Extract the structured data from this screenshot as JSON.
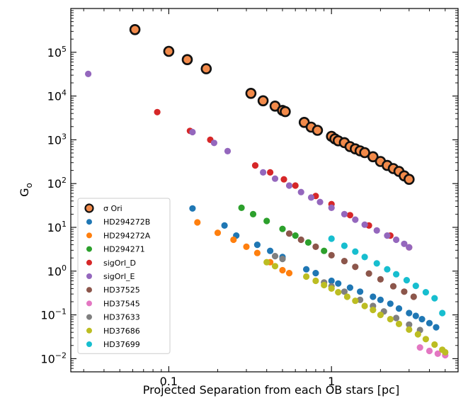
{
  "chart_data": {
    "type": "scatter",
    "title": "",
    "xlabel": "Projected Separation from each OB stars [pc]",
    "ylabel": "G",
    "ylabel_subscript": "o",
    "xscale": "log",
    "yscale": "log",
    "xlim": [
      0.025,
      6
    ],
    "ylim": [
      0.005,
      1000000
    ],
    "grid": false,
    "legend_position": "lower-left",
    "x_ticks": [
      {
        "value": 0.1,
        "label": "0.1"
      },
      {
        "value": 1,
        "label": "1"
      }
    ],
    "y_ticks": [
      {
        "value": 0.01,
        "base": "10",
        "exp": "−2"
      },
      {
        "value": 0.1,
        "base": "10",
        "exp": "−1"
      },
      {
        "value": 1,
        "base": "10",
        "exp": "0"
      },
      {
        "value": 10,
        "base": "10",
        "exp": "1"
      },
      {
        "value": 100,
        "base": "10",
        "exp": "2"
      },
      {
        "value": 1000,
        "base": "10",
        "exp": "3"
      },
      {
        "value": 10000,
        "base": "10",
        "exp": "4"
      },
      {
        "value": 100000,
        "base": "10",
        "exp": "5"
      }
    ],
    "series": [
      {
        "name": "σ Ori",
        "color": "#f28a4a",
        "edge": "#111111",
        "marker": "large-circle",
        "points": [
          [
            0.062,
            330000
          ],
          [
            0.1,
            105000
          ],
          [
            0.13,
            68000
          ],
          [
            0.17,
            42000
          ],
          [
            0.32,
            11500
          ],
          [
            0.38,
            7800
          ],
          [
            0.45,
            5900
          ],
          [
            0.5,
            4700
          ],
          [
            0.52,
            4400
          ],
          [
            0.68,
            2500
          ],
          [
            0.75,
            1950
          ],
          [
            0.82,
            1650
          ],
          [
            1.0,
            1200
          ],
          [
            1.05,
            1050
          ],
          [
            1.1,
            950
          ],
          [
            1.2,
            860
          ],
          [
            1.3,
            700
          ],
          [
            1.4,
            620
          ],
          [
            1.5,
            560
          ],
          [
            1.6,
            510
          ],
          [
            1.8,
            410
          ],
          [
            2.0,
            320
          ],
          [
            2.2,
            260
          ],
          [
            2.4,
            220
          ],
          [
            2.6,
            190
          ],
          [
            2.8,
            150
          ],
          [
            3.0,
            125
          ]
        ]
      },
      {
        "name": "HD294272B",
        "color": "#1f77b4",
        "points": [
          [
            0.14,
            27
          ],
          [
            0.22,
            11
          ],
          [
            0.26,
            6.5
          ],
          [
            0.35,
            4
          ],
          [
            0.42,
            2.9
          ],
          [
            0.5,
            2.1
          ],
          [
            0.7,
            1.1
          ],
          [
            0.8,
            0.9
          ],
          [
            1.0,
            0.6
          ],
          [
            1.1,
            0.52
          ],
          [
            1.3,
            0.42
          ],
          [
            1.5,
            0.34
          ],
          [
            1.8,
            0.26
          ],
          [
            2.0,
            0.22
          ],
          [
            2.3,
            0.18
          ],
          [
            2.6,
            0.14
          ],
          [
            3.0,
            0.11
          ],
          [
            3.3,
            0.095
          ],
          [
            3.6,
            0.08
          ],
          [
            4.0,
            0.065
          ],
          [
            4.4,
            0.052
          ]
        ]
      },
      {
        "name": "HD294272A",
        "color": "#ff7f0e",
        "points": [
          [
            0.15,
            13
          ],
          [
            0.2,
            7.5
          ],
          [
            0.25,
            5.2
          ],
          [
            0.3,
            3.6
          ],
          [
            0.35,
            2.6
          ],
          [
            0.42,
            1.6
          ],
          [
            0.5,
            1.05
          ],
          [
            0.55,
            0.9
          ]
        ]
      },
      {
        "name": "HD294271",
        "color": "#2ca02c",
        "points": [
          [
            0.28,
            28
          ],
          [
            0.33,
            20
          ],
          [
            0.4,
            14
          ],
          [
            0.5,
            9.2
          ],
          [
            0.6,
            6.5
          ],
          [
            0.72,
            4.5
          ],
          [
            0.9,
            2.9
          ]
        ]
      },
      {
        "name": "sigOrl_D",
        "color": "#d62728",
        "points": [
          [
            0.085,
            4300
          ],
          [
            0.135,
            1600
          ],
          [
            0.18,
            1000
          ],
          [
            0.34,
            260
          ],
          [
            0.42,
            180
          ],
          [
            0.51,
            125
          ],
          [
            0.6,
            90
          ],
          [
            0.8,
            52
          ],
          [
            1.0,
            34
          ],
          [
            1.3,
            19
          ],
          [
            1.7,
            11
          ],
          [
            2.3,
            6.5
          ],
          [
            3.0,
            3.5
          ]
        ]
      },
      {
        "name": "sigOrl_E",
        "color": "#9467bd",
        "points": [
          [
            0.032,
            32000
          ],
          [
            0.14,
            1500
          ],
          [
            0.19,
            850
          ],
          [
            0.23,
            550
          ],
          [
            0.38,
            180
          ],
          [
            0.45,
            130
          ],
          [
            0.55,
            90
          ],
          [
            0.65,
            64
          ],
          [
            0.75,
            48
          ],
          [
            0.85,
            38
          ],
          [
            1.0,
            28
          ],
          [
            1.2,
            20
          ],
          [
            1.4,
            15
          ],
          [
            1.6,
            11.5
          ],
          [
            1.9,
            8.5
          ],
          [
            2.2,
            6.5
          ],
          [
            2.5,
            5.2
          ],
          [
            2.8,
            4.2
          ],
          [
            3.0,
            3.5
          ]
        ]
      },
      {
        "name": "HD37525",
        "color": "#8c564b",
        "points": [
          [
            0.55,
            7.2
          ],
          [
            0.65,
            5.2
          ],
          [
            0.8,
            3.6
          ],
          [
            1.0,
            2.3
          ],
          [
            1.2,
            1.7
          ],
          [
            1.4,
            1.25
          ],
          [
            1.7,
            0.88
          ],
          [
            2.0,
            0.65
          ],
          [
            2.4,
            0.45
          ],
          [
            2.8,
            0.34
          ],
          [
            3.2,
            0.26
          ]
        ]
      },
      {
        "name": "HD37545",
        "color": "#e377c2",
        "points": [
          [
            3.5,
            0.018
          ],
          [
            4.0,
            0.015
          ],
          [
            4.5,
            0.013
          ],
          [
            5.0,
            0.012
          ]
        ]
      },
      {
        "name": "HD37633",
        "color": "#7f7f7f",
        "points": [
          [
            0.45,
            2.2
          ],
          [
            0.5,
            1.9
          ],
          [
            0.9,
            0.55
          ],
          [
            1.0,
            0.45
          ],
          [
            1.2,
            0.34
          ],
          [
            1.5,
            0.22
          ],
          [
            1.8,
            0.16
          ],
          [
            2.1,
            0.12
          ],
          [
            2.5,
            0.085
          ],
          [
            3.0,
            0.06
          ],
          [
            3.5,
            0.045
          ]
        ]
      },
      {
        "name": "HD37686",
        "color": "#bcbd22",
        "points": [
          [
            0.4,
            1.6
          ],
          [
            0.45,
            1.3
          ],
          [
            0.7,
            0.75
          ],
          [
            0.8,
            0.6
          ],
          [
            0.9,
            0.48
          ],
          [
            1.0,
            0.4
          ],
          [
            1.1,
            0.33
          ],
          [
            1.25,
            0.26
          ],
          [
            1.4,
            0.21
          ],
          [
            1.6,
            0.16
          ],
          [
            1.8,
            0.13
          ],
          [
            2.0,
            0.1
          ],
          [
            2.3,
            0.08
          ],
          [
            2.6,
            0.062
          ],
          [
            3.0,
            0.046
          ],
          [
            3.4,
            0.036
          ],
          [
            3.8,
            0.028
          ],
          [
            4.3,
            0.021
          ],
          [
            4.8,
            0.016
          ],
          [
            5.0,
            0.014
          ]
        ]
      },
      {
        "name": "HD37699",
        "color": "#17becf",
        "points": [
          [
            1.0,
            5.5
          ],
          [
            1.2,
            3.8
          ],
          [
            1.4,
            2.8
          ],
          [
            1.6,
            2.1
          ],
          [
            1.9,
            1.5
          ],
          [
            2.2,
            1.1
          ],
          [
            2.5,
            0.85
          ],
          [
            2.9,
            0.62
          ],
          [
            3.3,
            0.46
          ],
          [
            3.8,
            0.33
          ],
          [
            4.3,
            0.24
          ],
          [
            4.8,
            0.11
          ]
        ]
      }
    ]
  }
}
